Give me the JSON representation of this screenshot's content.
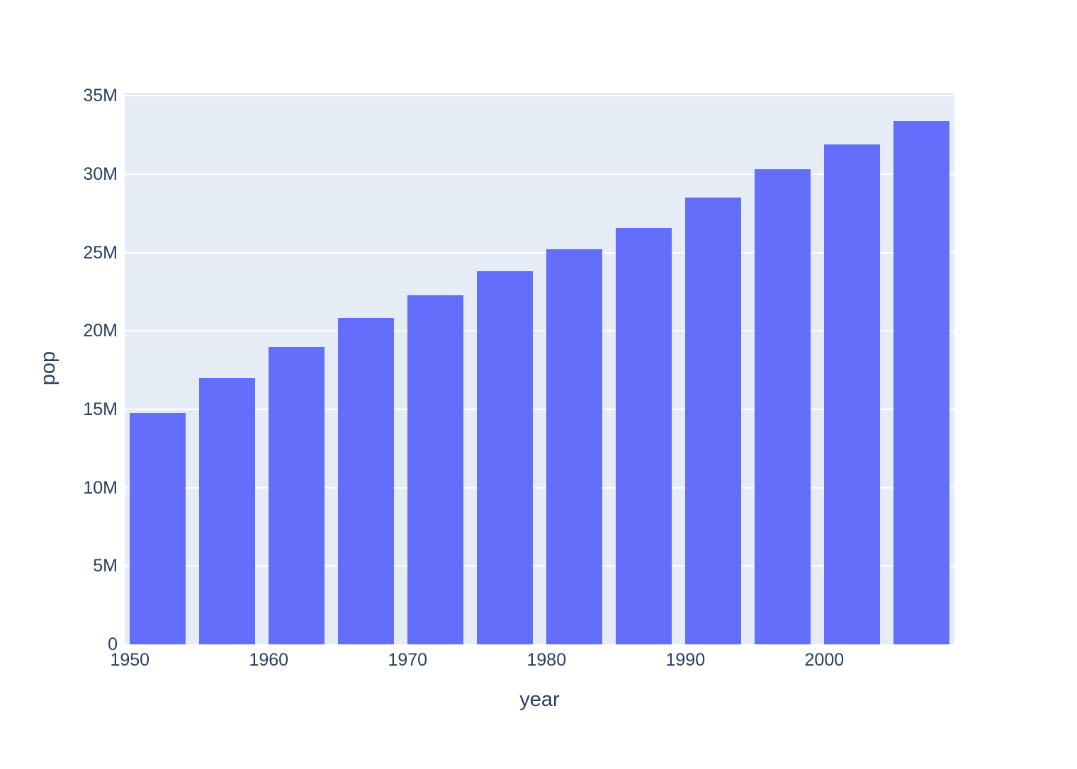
{
  "chart_data": {
    "type": "bar",
    "title": "",
    "xlabel": "year",
    "ylabel": "pop",
    "x": [
      1952,
      1957,
      1962,
      1967,
      1972,
      1977,
      1982,
      1987,
      1992,
      1997,
      2002,
      2007
    ],
    "values": [
      14785584,
      17010154,
      18985849,
      20819767,
      22284500,
      23796400,
      25201900,
      26549700,
      28523502,
      30305843,
      31902268,
      33390141
    ],
    "bar_width_x_units": 4,
    "xlim": [
      1949.63,
      2009.37
    ],
    "ylim": [
      0,
      35200000
    ],
    "x_ticks": [
      {
        "value": 1950,
        "label": "1950"
      },
      {
        "value": 1960,
        "label": "1960"
      },
      {
        "value": 1970,
        "label": "1970"
      },
      {
        "value": 1980,
        "label": "1980"
      },
      {
        "value": 1990,
        "label": "1990"
      },
      {
        "value": 2000,
        "label": "2000"
      }
    ],
    "y_ticks": [
      {
        "value": 0,
        "label": "0"
      },
      {
        "value": 5000000,
        "label": "5M"
      },
      {
        "value": 10000000,
        "label": "10M"
      },
      {
        "value": 15000000,
        "label": "15M"
      },
      {
        "value": 20000000,
        "label": "20M"
      },
      {
        "value": 25000000,
        "label": "25M"
      },
      {
        "value": 30000000,
        "label": "30M"
      },
      {
        "value": 35000000,
        "label": "35M"
      }
    ],
    "grid": true,
    "legend_position": "none",
    "colors": {
      "bar": "#636EFA",
      "plot_background": "#E5ECF6",
      "gridline": "#FFFFFF",
      "text": "#2A3F5F",
      "paper_background": "#FFFFFF"
    }
  }
}
